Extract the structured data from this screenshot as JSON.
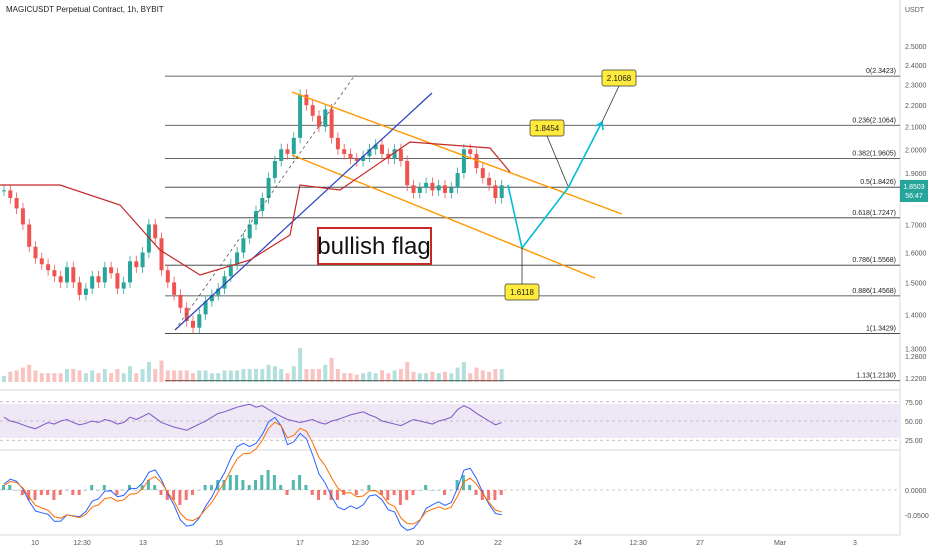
{
  "header": {
    "symbol_title": "MAGICUSDT Perpetual Contract, 1h, BYBIT",
    "currency": "USDT"
  },
  "price_axis": {
    "ticks": [
      "2.5000",
      "2.4000",
      "2.3000",
      "2.2000",
      "2.1000",
      "2.0000",
      "1.9000",
      "1.8000",
      "1.7000",
      "1.6000",
      "1.5000",
      "1.4000",
      "1.3000",
      "1.2800",
      "1.2200"
    ],
    "last_price": "1.8503",
    "countdown": "56:47"
  },
  "time_axis": [
    "10",
    "12:30",
    "13",
    "15",
    "17",
    "12:30",
    "20",
    "22",
    "24",
    "12:30",
    "27",
    "Mar",
    "3"
  ],
  "annotation_text": "bullish flag",
  "callouts": {
    "target_high": "2.1068",
    "target_mid": "1.8454",
    "target_low": "1.6118"
  },
  "rsi_axis": [
    "75.00",
    "50.00",
    "25.00"
  ],
  "macd_axis": [
    "0.0000",
    "-0.0500"
  ],
  "colors": {
    "up": "#26a69a",
    "down": "#ef5350",
    "channel": "#ff9800",
    "trend": "#2a3fbf",
    "stop": "#c62828",
    "projection": "#00bcd4",
    "rsi": "#7e57c2",
    "callout_bg": "#ffeb3b"
  },
  "chart_data": {
    "type": "candlestick",
    "title": "MAGICUSDT Perpetual Contract, 1h, BYBIT",
    "ylim": [
      1.2,
      2.55
    ],
    "y_scale": "log",
    "fib_levels": [
      {
        "label": "0(2.3423)",
        "value": 2.3423
      },
      {
        "label": "0.236(2.1064)",
        "value": 2.1064
      },
      {
        "label": "0.382(1.9605)",
        "value": 1.9605
      },
      {
        "label": "0.5(1.8426)",
        "value": 1.8426
      },
      {
        "label": "0.618(1.7247)",
        "value": 1.7247
      },
      {
        "label": "0.786(1.5568)",
        "value": 1.5568
      },
      {
        "label": "0.886(1.4568)",
        "value": 1.4568
      },
      {
        "label": "1(1.3429)",
        "value": 1.3429
      },
      {
        "label": "1.13(1.2130)",
        "value": 1.213
      }
    ],
    "close_series": [
      1.83,
      1.8,
      1.76,
      1.7,
      1.62,
      1.58,
      1.56,
      1.54,
      1.52,
      1.5,
      1.55,
      1.5,
      1.46,
      1.48,
      1.52,
      1.5,
      1.55,
      1.53,
      1.48,
      1.5,
      1.57,
      1.55,
      1.6,
      1.7,
      1.65,
      1.54,
      1.5,
      1.46,
      1.42,
      1.38,
      1.36,
      1.4,
      1.44,
      1.46,
      1.48,
      1.52,
      1.56,
      1.6,
      1.65,
      1.7,
      1.75,
      1.8,
      1.88,
      1.95,
      2.0,
      1.98,
      2.05,
      2.25,
      2.2,
      2.15,
      2.1,
      2.18,
      2.05,
      2.0,
      1.98,
      1.96,
      1.95,
      1.97,
      2.0,
      2.02,
      1.98,
      1.96,
      2.0,
      1.95,
      1.85,
      1.82,
      1.84,
      1.86,
      1.83,
      1.85,
      1.82,
      1.84,
      1.9,
      2.0,
      1.98,
      1.92,
      1.88,
      1.85,
      1.8,
      1.85
    ],
    "projection": [
      1.85,
      1.6118,
      1.8454,
      2.1068
    ],
    "rsi_levels": [
      75,
      50,
      25
    ],
    "rsi_series": [
      55,
      50,
      48,
      45,
      42,
      40,
      44,
      48,
      46,
      50,
      52,
      48,
      45,
      47,
      50,
      48,
      52,
      50,
      46,
      48,
      55,
      52,
      56,
      60,
      54,
      48,
      45,
      42,
      40,
      38,
      42,
      46,
      50,
      55,
      60,
      62,
      65,
      68,
      70,
      72,
      68,
      70,
      65,
      60,
      56,
      52,
      50,
      48,
      50,
      52,
      48,
      46,
      50,
      52,
      55,
      58,
      60,
      62,
      58,
      55,
      50,
      48,
      46,
      44,
      48,
      52,
      50,
      48,
      46,
      50,
      52,
      55,
      65,
      70,
      66,
      60,
      55,
      50,
      45,
      48
    ],
    "macd_zero": 0.0,
    "macd_hist": [
      0.01,
      0.01,
      0.0,
      -0.01,
      -0.02,
      -0.02,
      -0.01,
      -0.01,
      -0.02,
      -0.01,
      0.0,
      -0.01,
      -0.01,
      0.0,
      0.01,
      0.0,
      0.01,
      0.0,
      -0.01,
      0.0,
      0.01,
      0.0,
      0.01,
      0.02,
      0.01,
      -0.01,
      -0.02,
      -0.02,
      -0.03,
      -0.02,
      -0.01,
      0.0,
      0.01,
      0.01,
      0.02,
      0.02,
      0.03,
      0.03,
      0.02,
      0.01,
      0.02,
      0.03,
      0.04,
      0.03,
      0.01,
      -0.01,
      0.02,
      0.03,
      0.01,
      -0.01,
      -0.02,
      -0.01,
      -0.02,
      -0.02,
      -0.01,
      0.0,
      -0.01,
      0.0,
      0.01,
      0.0,
      -0.01,
      -0.02,
      -0.01,
      -0.03,
      -0.02,
      -0.01,
      0.0,
      0.01,
      0.0,
      0.0,
      -0.01,
      0.0,
      0.02,
      0.03,
      0.01,
      -0.01,
      -0.02,
      -0.02,
      -0.02,
      -0.01
    ]
  }
}
